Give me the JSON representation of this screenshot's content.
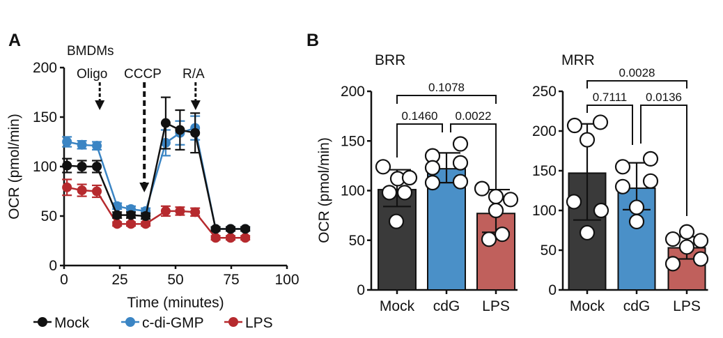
{
  "panels": {
    "a_label": "A",
    "b_label": "B"
  },
  "colors": {
    "mock": "#111111",
    "cdg": "#3b85c4",
    "lps": "#b62a2e",
    "bar_mock": "#3a3a3a",
    "bar_cdg": "#4a90c8",
    "bar_lps": "#c0605c"
  },
  "chart_data": [
    {
      "type": "line",
      "panel": "A",
      "title": "BMDMs",
      "xlabel": "Time (minutes)",
      "ylabel": "OCR (pmol/min)",
      "xlim": [
        0,
        100
      ],
      "ylim": [
        0,
        200
      ],
      "xticks": [
        "0",
        "25",
        "50",
        "75",
        "100"
      ],
      "yticks": [
        "0",
        "50",
        "100",
        "150",
        "200"
      ],
      "annotations": [
        {
          "label": "Oligo",
          "time": 16
        },
        {
          "label": "CCCP",
          "time": 36
        },
        {
          "label": "R/A",
          "time": 59
        }
      ],
      "x": [
        1.3,
        8,
        14.7,
        23.8,
        30,
        36.6,
        45.6,
        52,
        58.8,
        68,
        74.7,
        81.3
      ],
      "series": [
        {
          "name": "Mock",
          "key": "mock",
          "values": [
            101,
            100,
            100,
            51,
            51,
            50,
            144,
            137,
            134,
            37,
            37,
            37
          ],
          "err": [
            7,
            6,
            6,
            3,
            3,
            3,
            26,
            20,
            20,
            2,
            2,
            2
          ]
        },
        {
          "name": "c-di-GMP",
          "key": "cdg",
          "values": [
            125,
            122,
            121,
            60,
            57,
            55,
            124,
            134,
            139,
            37,
            37,
            37
          ],
          "err": [
            5,
            4,
            4,
            3,
            3,
            3,
            13,
            12,
            12,
            2,
            2,
            2
          ]
        },
        {
          "name": "LPS",
          "key": "lps",
          "values": [
            79,
            76,
            75,
            42,
            42,
            42,
            55,
            55,
            54,
            28,
            28,
            28
          ],
          "err": [
            8,
            6,
            6,
            2,
            2,
            2,
            5,
            4,
            4,
            2,
            2,
            2
          ]
        }
      ],
      "legend": "bottom"
    },
    {
      "type": "bar",
      "panel": "B",
      "title": "BRR",
      "ylabel": "OCR (pmol/min)",
      "ylim": [
        0,
        200
      ],
      "yticks": [
        "0",
        "50",
        "100",
        "150",
        "200"
      ],
      "categories": [
        "Mock",
        "cdG",
        "LPS"
      ],
      "keys": [
        "bar_mock",
        "bar_cdg",
        "bar_lps"
      ],
      "values": [
        101,
        122,
        77
      ],
      "err_low": [
        84,
        108,
        58
      ],
      "err_high": [
        121,
        138,
        101
      ],
      "points": [
        [
          124,
          112,
          113,
          98,
          98,
          69
        ],
        [
          135,
          147,
          123,
          128,
          108,
          109
        ],
        [
          102,
          94,
          91,
          80,
          56,
          51
        ]
      ],
      "comparisons": [
        {
          "from": 0,
          "to": 1,
          "p": "0.1460",
          "level": 1
        },
        {
          "from": 1,
          "to": 2,
          "p": "0.0022",
          "level": 1
        },
        {
          "from": 0,
          "to": 2,
          "p": "0.1078",
          "level": 2
        }
      ]
    },
    {
      "type": "bar",
      "panel": "B",
      "title": "MRR",
      "ylabel": "",
      "ylim": [
        0,
        250
      ],
      "yticks": [
        "0",
        "50",
        "100",
        "150",
        "200",
        "250"
      ],
      "categories": [
        "Mock",
        "cdG",
        "LPS"
      ],
      "keys": [
        "bar_mock",
        "bar_cdg",
        "bar_lps"
      ],
      "values": [
        147,
        128,
        53
      ],
      "err_low": [
        88,
        101,
        39
      ],
      "err_high": [
        209,
        160,
        67
      ],
      "points": [
        [
          207,
          211,
          189,
          111,
          100,
          72
        ],
        [
          155,
          165,
          130,
          137,
          104,
          86
        ],
        [
          64,
          73,
          62,
          54,
          33,
          39
        ]
      ],
      "comparisons": [
        {
          "from": 0,
          "to": 1,
          "p": "0.7111",
          "level": 1
        },
        {
          "from": 1,
          "to": 2,
          "p": "0.0136",
          "level": 1
        },
        {
          "from": 0,
          "to": 2,
          "p": "0.0028",
          "level": 2
        }
      ]
    }
  ]
}
